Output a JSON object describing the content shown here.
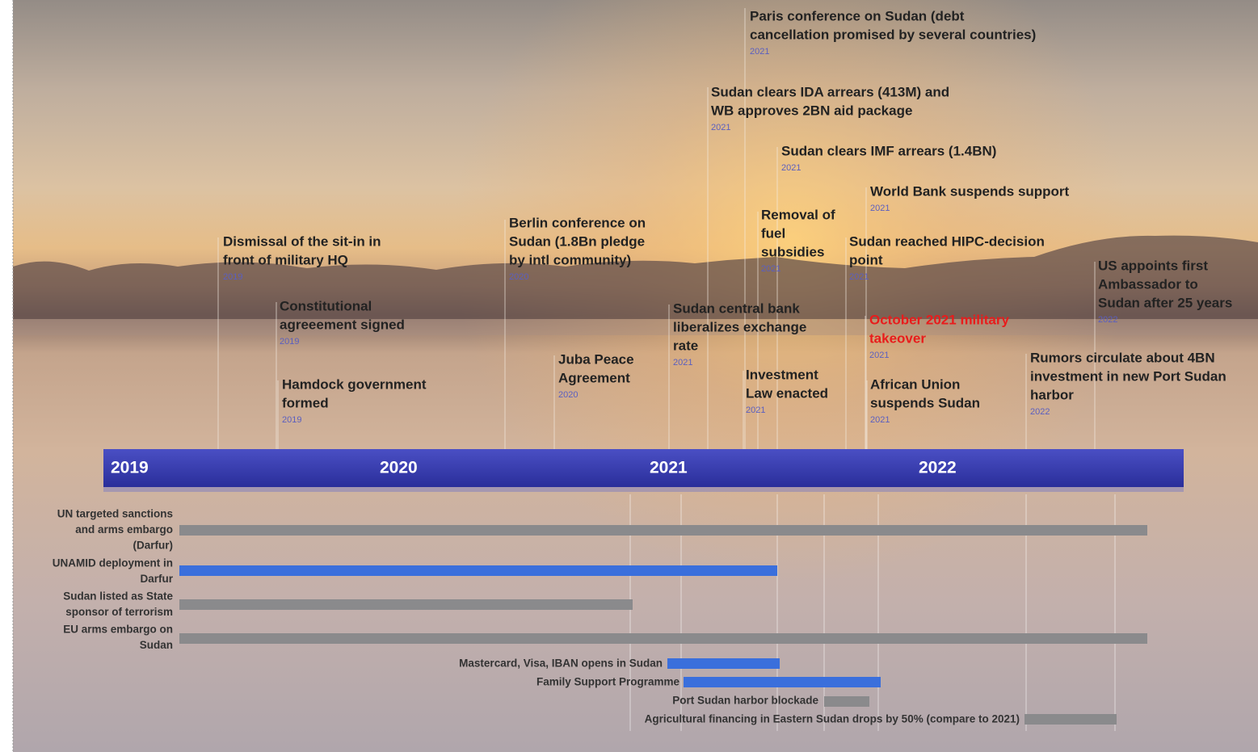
{
  "timeline": {
    "years": [
      "2019",
      "2020",
      "2021",
      "2022"
    ]
  },
  "events": [
    {
      "text": [
        "Paris conference on Sudan (debt",
        "cancellation promised by several countries)"
      ],
      "year": "2021"
    },
    {
      "text": [
        "Sudan clears IDA arrears (413M) and",
        "WB approves 2BN aid package"
      ],
      "year": "2021"
    },
    {
      "text": [
        "Sudan clears IMF arrears (1.4BN)"
      ],
      "year": "2021"
    },
    {
      "text": [
        "World Bank suspends support"
      ],
      "year": "2021"
    },
    {
      "text": [
        "Removal of",
        "fuel",
        "subsidies"
      ],
      "year": "2021"
    },
    {
      "text": [
        "Sudan reached HIPC-decision",
        "point"
      ],
      "year": "2021"
    },
    {
      "text": [
        "US appoints first",
        "Ambassador to",
        "Sudan after 25 years"
      ],
      "year": "2022"
    },
    {
      "text": [
        "Dismissal of the sit-in in",
        "front of military HQ"
      ],
      "year": "2019"
    },
    {
      "text": [
        "Berlin conference on",
        "Sudan (1.8Bn pledge",
        "by intl community)"
      ],
      "year": "2020"
    },
    {
      "text": [
        "Constitutional",
        "agreeement signed"
      ],
      "year": "2019"
    },
    {
      "text": [
        "Hamdock government",
        "formed"
      ],
      "year": "2019"
    },
    {
      "text": [
        "Juba Peace",
        "Agreement"
      ],
      "year": "2020"
    },
    {
      "text": [
        "Sudan central bank",
        "liberalizes exchange",
        "rate"
      ],
      "year": "2021"
    },
    {
      "text": [
        "Investment",
        "Law enacted"
      ],
      "year": "2021"
    },
    {
      "text": [
        "October 2021 military",
        "takeover"
      ],
      "year": "2021"
    },
    {
      "text": [
        "African Union",
        "suspends Sudan"
      ],
      "year": "2021"
    },
    {
      "text": [
        "Rumors circulate about 4BN",
        "investment in new Port Sudan",
        "harbor"
      ],
      "year": "2022"
    }
  ],
  "bars": [
    {
      "label": [
        "UN targeted sanctions",
        "and arms embargo",
        "(Darfur)"
      ]
    },
    {
      "label": [
        "UNAMID deployment in",
        "Darfur"
      ]
    },
    {
      "label": [
        "Sudan listed as State",
        "sponsor of terrorism"
      ]
    },
    {
      "label": [
        "EU arms embargo on",
        "Sudan"
      ]
    },
    {
      "label": [
        "Mastercard, Visa, IBAN opens in Sudan"
      ]
    },
    {
      "label": [
        "Family Support Programme"
      ]
    },
    {
      "label": [
        "Port Sudan harbor blockade"
      ]
    },
    {
      "label": [
        "Agricultural financing in Eastern Sudan drops by 50% (compare to 2021)"
      ]
    }
  ]
}
